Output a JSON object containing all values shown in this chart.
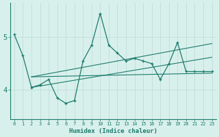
{
  "xlabel": "Humidex (Indice chaleur)",
  "bg_color": "#d8f0ec",
  "grid_color": "#c0ddd8",
  "line_color": "#1a7a6a",
  "x_values": [
    0,
    1,
    2,
    3,
    4,
    5,
    6,
    7,
    8,
    9,
    10,
    11,
    12,
    13,
    14,
    15,
    16,
    17,
    18,
    19,
    20,
    21,
    22,
    23
  ],
  "series1": [
    5.05,
    4.65,
    4.05,
    4.1,
    4.2,
    3.85,
    3.75,
    3.8,
    4.55,
    4.85,
    5.45,
    4.85,
    4.7,
    4.55,
    4.6,
    4.55,
    4.5,
    4.2,
    4.5,
    4.9,
    4.35,
    4.35,
    4.35,
    4.35
  ],
  "trend_lines": [
    {
      "x": [
        2,
        23
      ],
      "y": [
        4.25,
        4.32
      ]
    },
    {
      "x": [
        2,
        23
      ],
      "y": [
        4.05,
        4.62
      ]
    },
    {
      "x": [
        2,
        23
      ],
      "y": [
        4.25,
        4.88
      ]
    }
  ],
  "ytick_positions": [
    4.0,
    5.0
  ],
  "ytick_labels": [
    "4",
    "5"
  ],
  "ylim": [
    3.45,
    5.65
  ],
  "xlim": [
    -0.5,
    23.5
  ]
}
